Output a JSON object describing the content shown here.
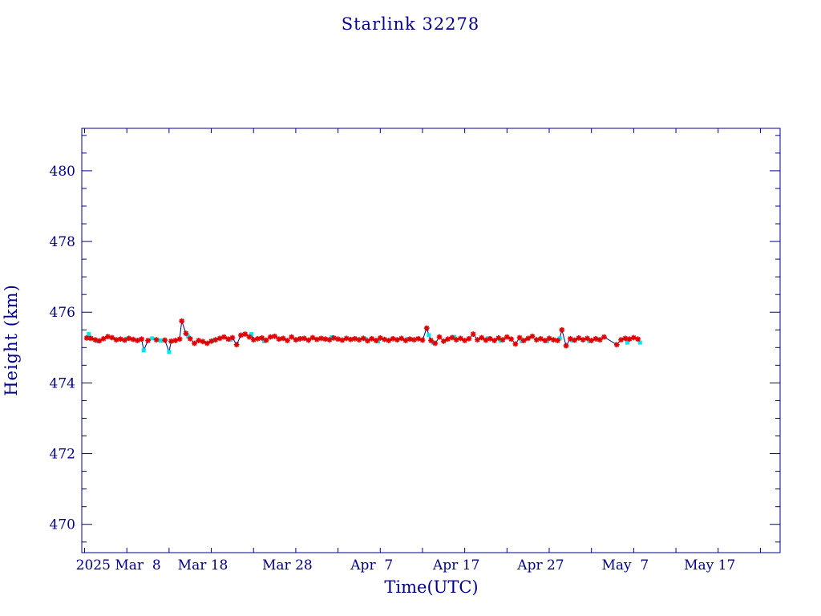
{
  "chart_data": {
    "type": "scatter",
    "title": "Starlink 32278",
    "xlabel": "Time(UTC)",
    "ylabel": "Height (km)",
    "x_tick_labels": [
      "2025 Mar  8",
      "Mar 18",
      "Mar 28",
      "Apr  7",
      "Apr 17",
      "Apr 27",
      "May  7",
      "May 17"
    ],
    "y_tick_labels": [
      "470",
      "472",
      "474",
      "476",
      "478",
      "480"
    ],
    "xlim": [
      "2025-02-26T16:00",
      "2025-05-20T08:00"
    ],
    "ylim": [
      469.2,
      481.2
    ],
    "grid": false,
    "colors": {
      "axes": "#00008b",
      "line": "#000080",
      "primary": "#e00000",
      "secondary": "#00e5ee"
    },
    "series": [
      {
        "marker": "star",
        "color": "#e00000",
        "points": [
          [
            "2025-02-27T06:00",
            475.27
          ],
          [
            "2025-02-27T18:00",
            475.26
          ],
          [
            "2025-02-28T06:00",
            475.22
          ],
          [
            "2025-02-28T18:00",
            475.19
          ],
          [
            "2025-03-01T06:00",
            475.25
          ],
          [
            "2025-03-01T18:00",
            475.31
          ],
          [
            "2025-03-02T06:00",
            475.28
          ],
          [
            "2025-03-02T18:00",
            475.22
          ],
          [
            "2025-03-03T06:00",
            475.24
          ],
          [
            "2025-03-03T18:00",
            475.21
          ],
          [
            "2025-03-04T06:00",
            475.26
          ],
          [
            "2025-03-04T18:00",
            475.23
          ],
          [
            "2025-03-05T06:00",
            475.2
          ],
          [
            "2025-03-05T18:00",
            475.24
          ],
          [
            "2025-03-06T12:00",
            475.2
          ],
          [
            "2025-03-07T12:00",
            475.22
          ],
          [
            "2025-03-08T12:00",
            475.21
          ],
          [
            "2025-03-09T06:00",
            475.18
          ],
          [
            "2025-03-09T18:00",
            475.2
          ],
          [
            "2025-03-10T06:00",
            475.24
          ],
          [
            "2025-03-10T12:00",
            475.75
          ],
          [
            "2025-03-11T00:00",
            475.4
          ],
          [
            "2025-03-11T12:00",
            475.25
          ],
          [
            "2025-03-12T00:00",
            475.12
          ],
          [
            "2025-03-12T12:00",
            475.2
          ],
          [
            "2025-03-13T00:00",
            475.17
          ],
          [
            "2025-03-13T12:00",
            475.12
          ],
          [
            "2025-03-14T00:00",
            475.18
          ],
          [
            "2025-03-14T12:00",
            475.22
          ],
          [
            "2025-03-15T00:00",
            475.26
          ],
          [
            "2025-03-15T12:00",
            475.3
          ],
          [
            "2025-03-16T00:00",
            475.24
          ],
          [
            "2025-03-16T12:00",
            475.28
          ],
          [
            "2025-03-17T00:00",
            475.08
          ],
          [
            "2025-03-17T12:00",
            475.35
          ],
          [
            "2025-03-18T00:00",
            475.38
          ],
          [
            "2025-03-18T12:00",
            475.3
          ],
          [
            "2025-03-19T00:00",
            475.22
          ],
          [
            "2025-03-19T12:00",
            475.25
          ],
          [
            "2025-03-20T00:00",
            475.27
          ],
          [
            "2025-03-20T12:00",
            475.21
          ],
          [
            "2025-03-21T00:00",
            475.3
          ],
          [
            "2025-03-21T12:00",
            475.32
          ],
          [
            "2025-03-22T00:00",
            475.24
          ],
          [
            "2025-03-22T12:00",
            475.26
          ],
          [
            "2025-03-23T00:00",
            475.2
          ],
          [
            "2025-03-23T12:00",
            475.3
          ],
          [
            "2025-03-24T00:00",
            475.22
          ],
          [
            "2025-03-24T12:00",
            475.25
          ],
          [
            "2025-03-25T00:00",
            475.26
          ],
          [
            "2025-03-25T12:00",
            475.21
          ],
          [
            "2025-03-26T00:00",
            475.28
          ],
          [
            "2025-03-26T12:00",
            475.23
          ],
          [
            "2025-03-27T00:00",
            475.26
          ],
          [
            "2025-03-27T12:00",
            475.24
          ],
          [
            "2025-03-28T00:00",
            475.22
          ],
          [
            "2025-03-28T12:00",
            475.27
          ],
          [
            "2025-03-29T00:00",
            475.24
          ],
          [
            "2025-03-29T12:00",
            475.21
          ],
          [
            "2025-03-30T00:00",
            475.26
          ],
          [
            "2025-03-30T12:00",
            475.23
          ],
          [
            "2025-03-31T00:00",
            475.25
          ],
          [
            "2025-03-31T12:00",
            475.22
          ],
          [
            "2025-04-01T00:00",
            475.26
          ],
          [
            "2025-04-01T12:00",
            475.19
          ],
          [
            "2025-04-02T00:00",
            475.25
          ],
          [
            "2025-04-02T12:00",
            475.2
          ],
          [
            "2025-04-03T00:00",
            475.27
          ],
          [
            "2025-04-03T12:00",
            475.23
          ],
          [
            "2025-04-04T00:00",
            475.2
          ],
          [
            "2025-04-04T12:00",
            475.25
          ],
          [
            "2025-04-05T00:00",
            475.22
          ],
          [
            "2025-04-05T12:00",
            475.26
          ],
          [
            "2025-04-06T00:00",
            475.2
          ],
          [
            "2025-04-06T12:00",
            475.24
          ],
          [
            "2025-04-07T00:00",
            475.22
          ],
          [
            "2025-04-07T12:00",
            475.25
          ],
          [
            "2025-04-08T00:00",
            475.21
          ],
          [
            "2025-04-08T12:00",
            475.55
          ],
          [
            "2025-04-09T00:00",
            475.2
          ],
          [
            "2025-04-09T12:00",
            475.12
          ],
          [
            "2025-04-10T00:00",
            475.3
          ],
          [
            "2025-04-10T12:00",
            475.18
          ],
          [
            "2025-04-11T00:00",
            475.24
          ],
          [
            "2025-04-11T12:00",
            475.28
          ],
          [
            "2025-04-12T00:00",
            475.22
          ],
          [
            "2025-04-12T12:00",
            475.26
          ],
          [
            "2025-04-13T00:00",
            475.2
          ],
          [
            "2025-04-13T12:00",
            475.25
          ],
          [
            "2025-04-14T00:00",
            475.38
          ],
          [
            "2025-04-14T12:00",
            475.22
          ],
          [
            "2025-04-15T00:00",
            475.28
          ],
          [
            "2025-04-15T12:00",
            475.21
          ],
          [
            "2025-04-16T00:00",
            475.25
          ],
          [
            "2025-04-16T12:00",
            475.2
          ],
          [
            "2025-04-17T00:00",
            475.27
          ],
          [
            "2025-04-17T12:00",
            475.22
          ],
          [
            "2025-04-18T00:00",
            475.3
          ],
          [
            "2025-04-18T12:00",
            475.24
          ],
          [
            "2025-04-19T00:00",
            475.1
          ],
          [
            "2025-04-19T12:00",
            475.28
          ],
          [
            "2025-04-20T00:00",
            475.2
          ],
          [
            "2025-04-20T12:00",
            475.26
          ],
          [
            "2025-04-21T00:00",
            475.32
          ],
          [
            "2025-04-21T12:00",
            475.22
          ],
          [
            "2025-04-22T00:00",
            475.25
          ],
          [
            "2025-04-22T12:00",
            475.2
          ],
          [
            "2025-04-23T00:00",
            475.26
          ],
          [
            "2025-04-23T12:00",
            475.22
          ],
          [
            "2025-04-24T00:00",
            475.2
          ],
          [
            "2025-04-24T12:00",
            475.5
          ],
          [
            "2025-04-25T00:00",
            475.05
          ],
          [
            "2025-04-25T12:00",
            475.25
          ],
          [
            "2025-04-26T00:00",
            475.21
          ],
          [
            "2025-04-26T12:00",
            475.27
          ],
          [
            "2025-04-27T00:00",
            475.22
          ],
          [
            "2025-04-27T12:00",
            475.26
          ],
          [
            "2025-04-28T00:00",
            475.2
          ],
          [
            "2025-04-28T12:00",
            475.25
          ],
          [
            "2025-04-29T00:00",
            475.22
          ],
          [
            "2025-04-29T12:00",
            475.3
          ],
          [
            "2025-05-01T00:00",
            475.08
          ],
          [
            "2025-05-01T12:00",
            475.22
          ],
          [
            "2025-05-02T00:00",
            475.26
          ],
          [
            "2025-05-02T12:00",
            475.24
          ],
          [
            "2025-05-03T00:00",
            475.28
          ],
          [
            "2025-05-03T12:00",
            475.24
          ]
        ]
      },
      {
        "marker": "dot",
        "color": "#00e5ee",
        "points": [
          [
            "2025-02-27T12:00",
            475.38
          ],
          [
            "2025-02-28T12:00",
            475.18
          ],
          [
            "2025-03-04T00:00",
            475.25
          ],
          [
            "2025-03-05T12:00",
            475.22
          ],
          [
            "2025-03-06T00:00",
            474.92
          ],
          [
            "2025-03-07T00:00",
            475.26
          ],
          [
            "2025-03-08T00:00",
            475.2
          ],
          [
            "2025-03-09T00:00",
            474.88
          ],
          [
            "2025-03-11T06:00",
            475.32
          ],
          [
            "2025-03-14T06:00",
            475.2
          ],
          [
            "2025-03-16T06:00",
            475.22
          ],
          [
            "2025-03-18T18:00",
            475.38
          ],
          [
            "2025-03-20T06:00",
            475.18
          ],
          [
            "2025-03-24T06:00",
            475.22
          ],
          [
            "2025-03-28T06:00",
            475.29
          ],
          [
            "2025-04-01T06:00",
            475.24
          ],
          [
            "2025-04-02T18:00",
            475.17
          ],
          [
            "2025-04-06T06:00",
            475.24
          ],
          [
            "2025-04-08T18:00",
            475.35
          ],
          [
            "2025-04-09T06:00",
            475.14
          ],
          [
            "2025-04-11T18:00",
            475.3
          ],
          [
            "2025-04-15T18:00",
            475.26
          ],
          [
            "2025-04-17T06:00",
            475.2
          ],
          [
            "2025-04-19T18:00",
            475.18
          ],
          [
            "2025-04-22T18:00",
            475.18
          ],
          [
            "2025-04-24T06:00",
            475.26
          ],
          [
            "2025-04-25T18:00",
            475.2
          ],
          [
            "2025-04-27T18:00",
            475.18
          ],
          [
            "2025-04-28T18:00",
            475.22
          ],
          [
            "2025-05-02T06:00",
            475.14
          ],
          [
            "2025-05-03T18:00",
            475.14
          ]
        ]
      }
    ]
  }
}
